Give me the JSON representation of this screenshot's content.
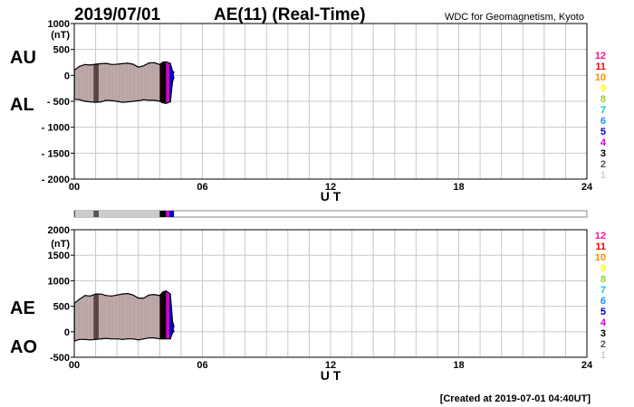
{
  "header": {
    "date": "2019/07/01",
    "title": "AE(11) (Real-Time)",
    "source": "WDC for Geomagnetism, Kyoto"
  },
  "footer": {
    "created": "[Created at 2019-07-01 04:40UT]"
  },
  "legend": {
    "numbers": [
      "12",
      "11",
      "10",
      "9",
      "8",
      "7",
      "6",
      "5",
      "4",
      "3",
      "2",
      "1"
    ],
    "colors": [
      "#ff1493",
      "#ff0000",
      "#ff8c00",
      "#ffff00",
      "#9acd32",
      "#00cccc",
      "#1e90ff",
      "#0000cd",
      "#cc00cc",
      "#000000",
      "#555555",
      "#cccccc"
    ]
  },
  "colors": {
    "fill_main": "#ff2a10",
    "fill_orange": "#ff8c1a",
    "fill_yellow": "#ffff00",
    "fill_green": "#33cc66",
    "fill_teal": "#00aaaa",
    "grid": "#c8c8c8",
    "axis": "#000000"
  },
  "chart_data": [
    {
      "type": "area",
      "panel": "AU/AL",
      "series_labels": [
        "AU",
        "AL"
      ],
      "unit_label": "(nT)",
      "xlabel": "U T",
      "xlim": [
        0,
        24
      ],
      "xticks": [
        0,
        6,
        12,
        18,
        24
      ],
      "xtick_labels": [
        "00",
        "06",
        "12",
        "18",
        "24"
      ],
      "ylim": [
        -2000,
        1000
      ],
      "yticks": [
        1000,
        500,
        0,
        -500,
        -1000,
        -1500,
        -2000
      ],
      "ytick_labels": [
        "1000",
        "500",
        "0",
        "- 500",
        "- 1000",
        "- 1500",
        "- 2000"
      ],
      "x": [
        0.0,
        0.25,
        0.5,
        0.75,
        1.0,
        1.25,
        1.5,
        1.75,
        2.0,
        2.25,
        2.5,
        2.75,
        3.0,
        3.25,
        3.5,
        3.75,
        4.0,
        4.15,
        4.3,
        4.5,
        4.6,
        4.67
      ],
      "series": [
        {
          "name": "AU",
          "values": [
            100,
            175,
            210,
            200,
            215,
            225,
            230,
            210,
            215,
            225,
            235,
            215,
            160,
            185,
            240,
            245,
            210,
            255,
            260,
            230,
            80,
            60
          ]
        },
        {
          "name": "AL",
          "values": [
            -460,
            -470,
            -500,
            -510,
            -520,
            -510,
            -480,
            -490,
            -500,
            -520,
            -510,
            -500,
            -490,
            -470,
            -480,
            -480,
            -500,
            -530,
            -540,
            -510,
            -120,
            -40
          ]
        }
      ]
    },
    {
      "type": "area",
      "panel": "AE/AO",
      "series_labels": [
        "AE",
        "AO"
      ],
      "unit_label": "(nT)",
      "xlabel": "U T",
      "xlim": [
        0,
        24
      ],
      "xticks": [
        0,
        6,
        12,
        18,
        24
      ],
      "xtick_labels": [
        "00",
        "06",
        "12",
        "18",
        "24"
      ],
      "ylim": [
        -500,
        2000
      ],
      "yticks": [
        2000,
        1500,
        1000,
        500,
        0,
        -500
      ],
      "ytick_labels": [
        "2000",
        "1500",
        "1000",
        "500",
        "0",
        "-500"
      ],
      "x": [
        0.0,
        0.25,
        0.5,
        0.75,
        1.0,
        1.25,
        1.5,
        1.75,
        2.0,
        2.25,
        2.5,
        2.75,
        3.0,
        3.25,
        3.5,
        3.75,
        4.0,
        4.15,
        4.3,
        4.5,
        4.6,
        4.67
      ],
      "series": [
        {
          "name": "AE",
          "values": [
            560,
            640,
            710,
            700,
            740,
            740,
            710,
            700,
            720,
            740,
            750,
            720,
            660,
            660,
            720,
            730,
            710,
            780,
            800,
            740,
            200,
            100
          ]
        },
        {
          "name": "AO",
          "values": [
            -180,
            -150,
            -150,
            -160,
            -150,
            -140,
            -130,
            -140,
            -140,
            -150,
            -140,
            -140,
            -160,
            -140,
            -120,
            -120,
            -140,
            -140,
            -140,
            -140,
            -20,
            10
          ]
        }
      ]
    }
  ],
  "station_bands": [
    {
      "x0": 0.0,
      "x1": 0.05,
      "color_index": 10
    },
    {
      "x0": 0.05,
      "x1": 0.9,
      "color_index": 11
    },
    {
      "x0": 0.9,
      "x1": 1.15,
      "color_index": 10
    },
    {
      "x0": 1.15,
      "x1": 4.0,
      "color_index": 11
    },
    {
      "x0": 4.0,
      "x1": 4.3,
      "color_index": 9
    },
    {
      "x0": 4.3,
      "x1": 4.45,
      "color_index": 8
    },
    {
      "x0": 4.45,
      "x1": 4.67,
      "color_index": 7
    }
  ]
}
